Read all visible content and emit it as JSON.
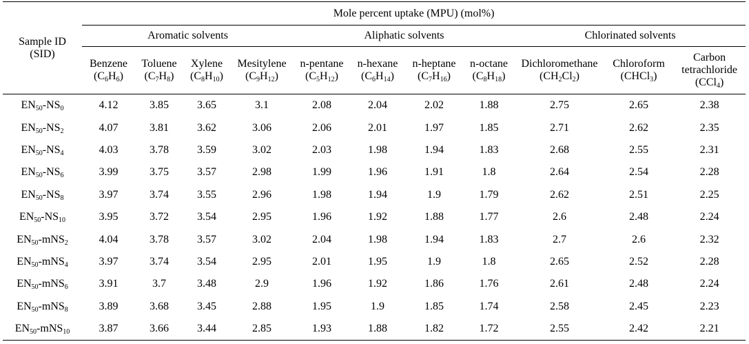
{
  "table": {
    "sid_header": "Sample ID (SID)",
    "sid_header_line1": "Sample ID",
    "sid_header_line2": "(SID)",
    "main_header": "Mole percent uptake (MPU) (mol%)",
    "groups": [
      "Aromatic solvents",
      "Aliphatic solvents",
      "Chlorinated solvents"
    ],
    "columns": [
      {
        "name": "Benzene",
        "formula": "(C6H6)"
      },
      {
        "name": "Toluene",
        "formula": "(C7H8)"
      },
      {
        "name": "Xylene",
        "formula": "(C8H10)"
      },
      {
        "name": "Mesitylene",
        "formula": "(C9H12)"
      },
      {
        "name": "n-pentane",
        "formula": "(C5H12)"
      },
      {
        "name": "n-hexane",
        "formula": "(C6H14)"
      },
      {
        "name": "n-heptane",
        "formula": "(C7H16)"
      },
      {
        "name": "n-octane",
        "formula": "(C8H18)"
      },
      {
        "name": "Dichloromethane",
        "formula": "(CH2Cl2)"
      },
      {
        "name": "Chloroform",
        "formula": "(CHCl3)"
      },
      {
        "name": "Carbon tetrachloride",
        "formula": "(CCl4)"
      }
    ],
    "rows": [
      {
        "sid": "EN50-NS0",
        "values": [
          "4.12",
          "3.85",
          "3.65",
          "3.1",
          "2.08",
          "2.04",
          "2.02",
          "1.88",
          "2.75",
          "2.65",
          "2.38"
        ]
      },
      {
        "sid": "EN50-NS2",
        "values": [
          "4.07",
          "3.81",
          "3.62",
          "3.06",
          "2.06",
          "2.01",
          "1.97",
          "1.85",
          "2.71",
          "2.62",
          "2.35"
        ]
      },
      {
        "sid": "EN50-NS4",
        "values": [
          "4.03",
          "3.78",
          "3.59",
          "3.02",
          "2.03",
          "1.98",
          "1.94",
          "1.83",
          "2.68",
          "2.55",
          "2.31"
        ]
      },
      {
        "sid": "EN50-NS6",
        "values": [
          "3.99",
          "3.75",
          "3.57",
          "2.98",
          "1.99",
          "1.96",
          "1.91",
          "1.8",
          "2.64",
          "2.54",
          "2.28"
        ]
      },
      {
        "sid": "EN50-NS8",
        "values": [
          "3.97",
          "3.74",
          "3.55",
          "2.96",
          "1.98",
          "1.94",
          "1.9",
          "1.79",
          "2.62",
          "2.51",
          "2.25"
        ]
      },
      {
        "sid": "EN50-NS10",
        "values": [
          "3.95",
          "3.72",
          "3.54",
          "2.95",
          "1.96",
          "1.92",
          "1.88",
          "1.77",
          "2.6",
          "2.48",
          "2.24"
        ]
      },
      {
        "sid": "EN50-mNS2",
        "values": [
          "4.04",
          "3.78",
          "3.57",
          "3.02",
          "2.04",
          "1.98",
          "1.94",
          "1.83",
          "2.7",
          "2.6",
          "2.32"
        ]
      },
      {
        "sid": "EN50-mNS4",
        "values": [
          "3.97",
          "3.74",
          "3.54",
          "2.95",
          "2.01",
          "1.95",
          "1.9",
          "1.8",
          "2.65",
          "2.52",
          "2.28"
        ]
      },
      {
        "sid": "EN50-mNS6",
        "values": [
          "3.91",
          "3.7",
          "3.48",
          "2.9",
          "1.96",
          "1.92",
          "1.86",
          "1.76",
          "2.61",
          "2.48",
          "2.24"
        ]
      },
      {
        "sid": "EN50-mNS8",
        "values": [
          "3.89",
          "3.68",
          "3.45",
          "2.88",
          "1.95",
          "1.9",
          "1.85",
          "1.74",
          "2.58",
          "2.45",
          "2.23"
        ]
      },
      {
        "sid": "EN50-mNS10",
        "values": [
          "3.87",
          "3.66",
          "3.44",
          "2.85",
          "1.93",
          "1.88",
          "1.82",
          "1.72",
          "2.55",
          "2.42",
          "2.21"
        ]
      }
    ]
  }
}
